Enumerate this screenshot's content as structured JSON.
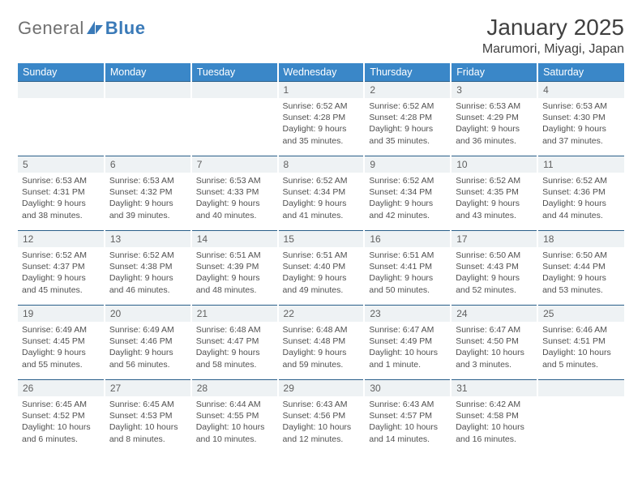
{
  "brand": {
    "part1": "General",
    "part2": "Blue"
  },
  "title": "January 2025",
  "location": "Marumori, Miyagi, Japan",
  "colors": {
    "header_bg": "#3a87c8",
    "header_text": "#ffffff",
    "dayband_bg": "#eef2f4",
    "rule": "#2a5f8a",
    "text": "#404040",
    "brand_blue": "#3a7ab8"
  },
  "weekdays": [
    "Sunday",
    "Monday",
    "Tuesday",
    "Wednesday",
    "Thursday",
    "Friday",
    "Saturday"
  ],
  "first_weekday_index": 3,
  "days": [
    {
      "n": 1,
      "sunrise": "6:52 AM",
      "sunset": "4:28 PM",
      "daylight": "9 hours and 35 minutes."
    },
    {
      "n": 2,
      "sunrise": "6:52 AM",
      "sunset": "4:28 PM",
      "daylight": "9 hours and 35 minutes."
    },
    {
      "n": 3,
      "sunrise": "6:53 AM",
      "sunset": "4:29 PM",
      "daylight": "9 hours and 36 minutes."
    },
    {
      "n": 4,
      "sunrise": "6:53 AM",
      "sunset": "4:30 PM",
      "daylight": "9 hours and 37 minutes."
    },
    {
      "n": 5,
      "sunrise": "6:53 AM",
      "sunset": "4:31 PM",
      "daylight": "9 hours and 38 minutes."
    },
    {
      "n": 6,
      "sunrise": "6:53 AM",
      "sunset": "4:32 PM",
      "daylight": "9 hours and 39 minutes."
    },
    {
      "n": 7,
      "sunrise": "6:53 AM",
      "sunset": "4:33 PM",
      "daylight": "9 hours and 40 minutes."
    },
    {
      "n": 8,
      "sunrise": "6:52 AM",
      "sunset": "4:34 PM",
      "daylight": "9 hours and 41 minutes."
    },
    {
      "n": 9,
      "sunrise": "6:52 AM",
      "sunset": "4:34 PM",
      "daylight": "9 hours and 42 minutes."
    },
    {
      "n": 10,
      "sunrise": "6:52 AM",
      "sunset": "4:35 PM",
      "daylight": "9 hours and 43 minutes."
    },
    {
      "n": 11,
      "sunrise": "6:52 AM",
      "sunset": "4:36 PM",
      "daylight": "9 hours and 44 minutes."
    },
    {
      "n": 12,
      "sunrise": "6:52 AM",
      "sunset": "4:37 PM",
      "daylight": "9 hours and 45 minutes."
    },
    {
      "n": 13,
      "sunrise": "6:52 AM",
      "sunset": "4:38 PM",
      "daylight": "9 hours and 46 minutes."
    },
    {
      "n": 14,
      "sunrise": "6:51 AM",
      "sunset": "4:39 PM",
      "daylight": "9 hours and 48 minutes."
    },
    {
      "n": 15,
      "sunrise": "6:51 AM",
      "sunset": "4:40 PM",
      "daylight": "9 hours and 49 minutes."
    },
    {
      "n": 16,
      "sunrise": "6:51 AM",
      "sunset": "4:41 PM",
      "daylight": "9 hours and 50 minutes."
    },
    {
      "n": 17,
      "sunrise": "6:50 AM",
      "sunset": "4:43 PM",
      "daylight": "9 hours and 52 minutes."
    },
    {
      "n": 18,
      "sunrise": "6:50 AM",
      "sunset": "4:44 PM",
      "daylight": "9 hours and 53 minutes."
    },
    {
      "n": 19,
      "sunrise": "6:49 AM",
      "sunset": "4:45 PM",
      "daylight": "9 hours and 55 minutes."
    },
    {
      "n": 20,
      "sunrise": "6:49 AM",
      "sunset": "4:46 PM",
      "daylight": "9 hours and 56 minutes."
    },
    {
      "n": 21,
      "sunrise": "6:48 AM",
      "sunset": "4:47 PM",
      "daylight": "9 hours and 58 minutes."
    },
    {
      "n": 22,
      "sunrise": "6:48 AM",
      "sunset": "4:48 PM",
      "daylight": "9 hours and 59 minutes."
    },
    {
      "n": 23,
      "sunrise": "6:47 AM",
      "sunset": "4:49 PM",
      "daylight": "10 hours and 1 minute."
    },
    {
      "n": 24,
      "sunrise": "6:47 AM",
      "sunset": "4:50 PM",
      "daylight": "10 hours and 3 minutes."
    },
    {
      "n": 25,
      "sunrise": "6:46 AM",
      "sunset": "4:51 PM",
      "daylight": "10 hours and 5 minutes."
    },
    {
      "n": 26,
      "sunrise": "6:45 AM",
      "sunset": "4:52 PM",
      "daylight": "10 hours and 6 minutes."
    },
    {
      "n": 27,
      "sunrise": "6:45 AM",
      "sunset": "4:53 PM",
      "daylight": "10 hours and 8 minutes."
    },
    {
      "n": 28,
      "sunrise": "6:44 AM",
      "sunset": "4:55 PM",
      "daylight": "10 hours and 10 minutes."
    },
    {
      "n": 29,
      "sunrise": "6:43 AM",
      "sunset": "4:56 PM",
      "daylight": "10 hours and 12 minutes."
    },
    {
      "n": 30,
      "sunrise": "6:43 AM",
      "sunset": "4:57 PM",
      "daylight": "10 hours and 14 minutes."
    },
    {
      "n": 31,
      "sunrise": "6:42 AM",
      "sunset": "4:58 PM",
      "daylight": "10 hours and 16 minutes."
    }
  ],
  "labels": {
    "sunrise": "Sunrise:",
    "sunset": "Sunset:",
    "daylight": "Daylight:"
  }
}
